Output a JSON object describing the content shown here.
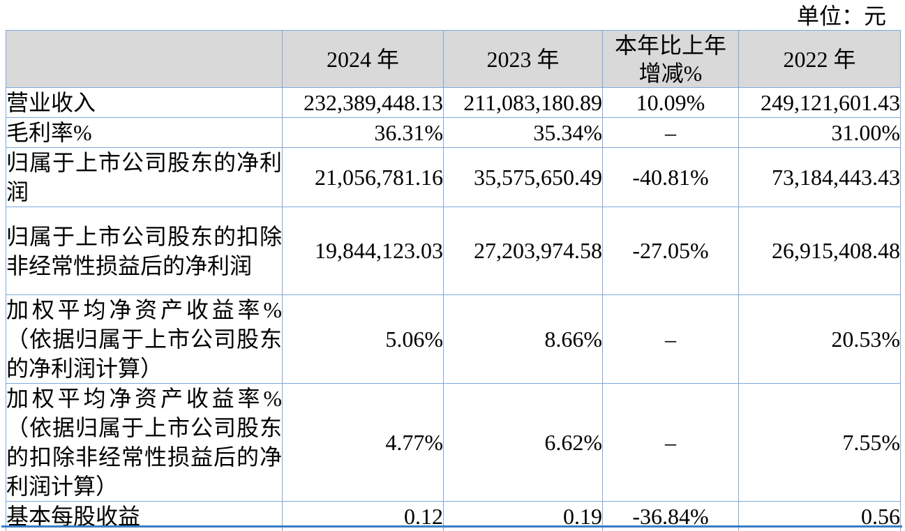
{
  "page": {
    "unit_label": "单位：元",
    "colors": {
      "table_border": "#7CA9DC",
      "header_background": "#D9D9D9",
      "bottom_rule": "#3A7CC2",
      "text": "#000000"
    }
  },
  "table": {
    "header": {
      "label": "",
      "y2024": "2024 年",
      "y2023": "2023 年",
      "yoy": "本年比上年增减%",
      "y2022": "2022 年"
    },
    "rows": [
      {
        "label": "营业收入",
        "y2024": "232,389,448.13",
        "y2023": "211,083,180.89",
        "yoy": "10.09%",
        "y2022": "249,121,601.43"
      },
      {
        "label": "毛利率%",
        "y2024": "36.31%",
        "y2023": "35.34%",
        "yoy": "–",
        "y2022": "31.00%"
      },
      {
        "label": "归属于上市公司股东的净利润",
        "y2024": "21,056,781.16",
        "y2023": "35,575,650.49",
        "yoy": "-40.81%",
        "y2022": "73,184,443.43"
      },
      {
        "label": "归属于上市公司股东的扣除非经常性损益后的净利润",
        "y2024": "19,844,123.03",
        "y2023": "27,203,974.58",
        "yoy": "-27.05%",
        "y2022": "26,915,408.48"
      },
      {
        "label": "加权平均净资产收益率%（依据归属于上市公司股东的净利润计算）",
        "y2024": "5.06%",
        "y2023": "8.66%",
        "yoy": "–",
        "y2022": "20.53%"
      },
      {
        "label": "加权平均净资产收益率%（依据归属于上市公司股东的扣除非经常性损益后的净利润计算）",
        "y2024": "4.77%",
        "y2023": "6.62%",
        "yoy": "–",
        "y2022": "7.55%"
      },
      {
        "label": "基本每股收益",
        "y2024": "0.12",
        "y2023": "0.19",
        "yoy": "-36.84%",
        "y2022": "0.56"
      }
    ]
  }
}
